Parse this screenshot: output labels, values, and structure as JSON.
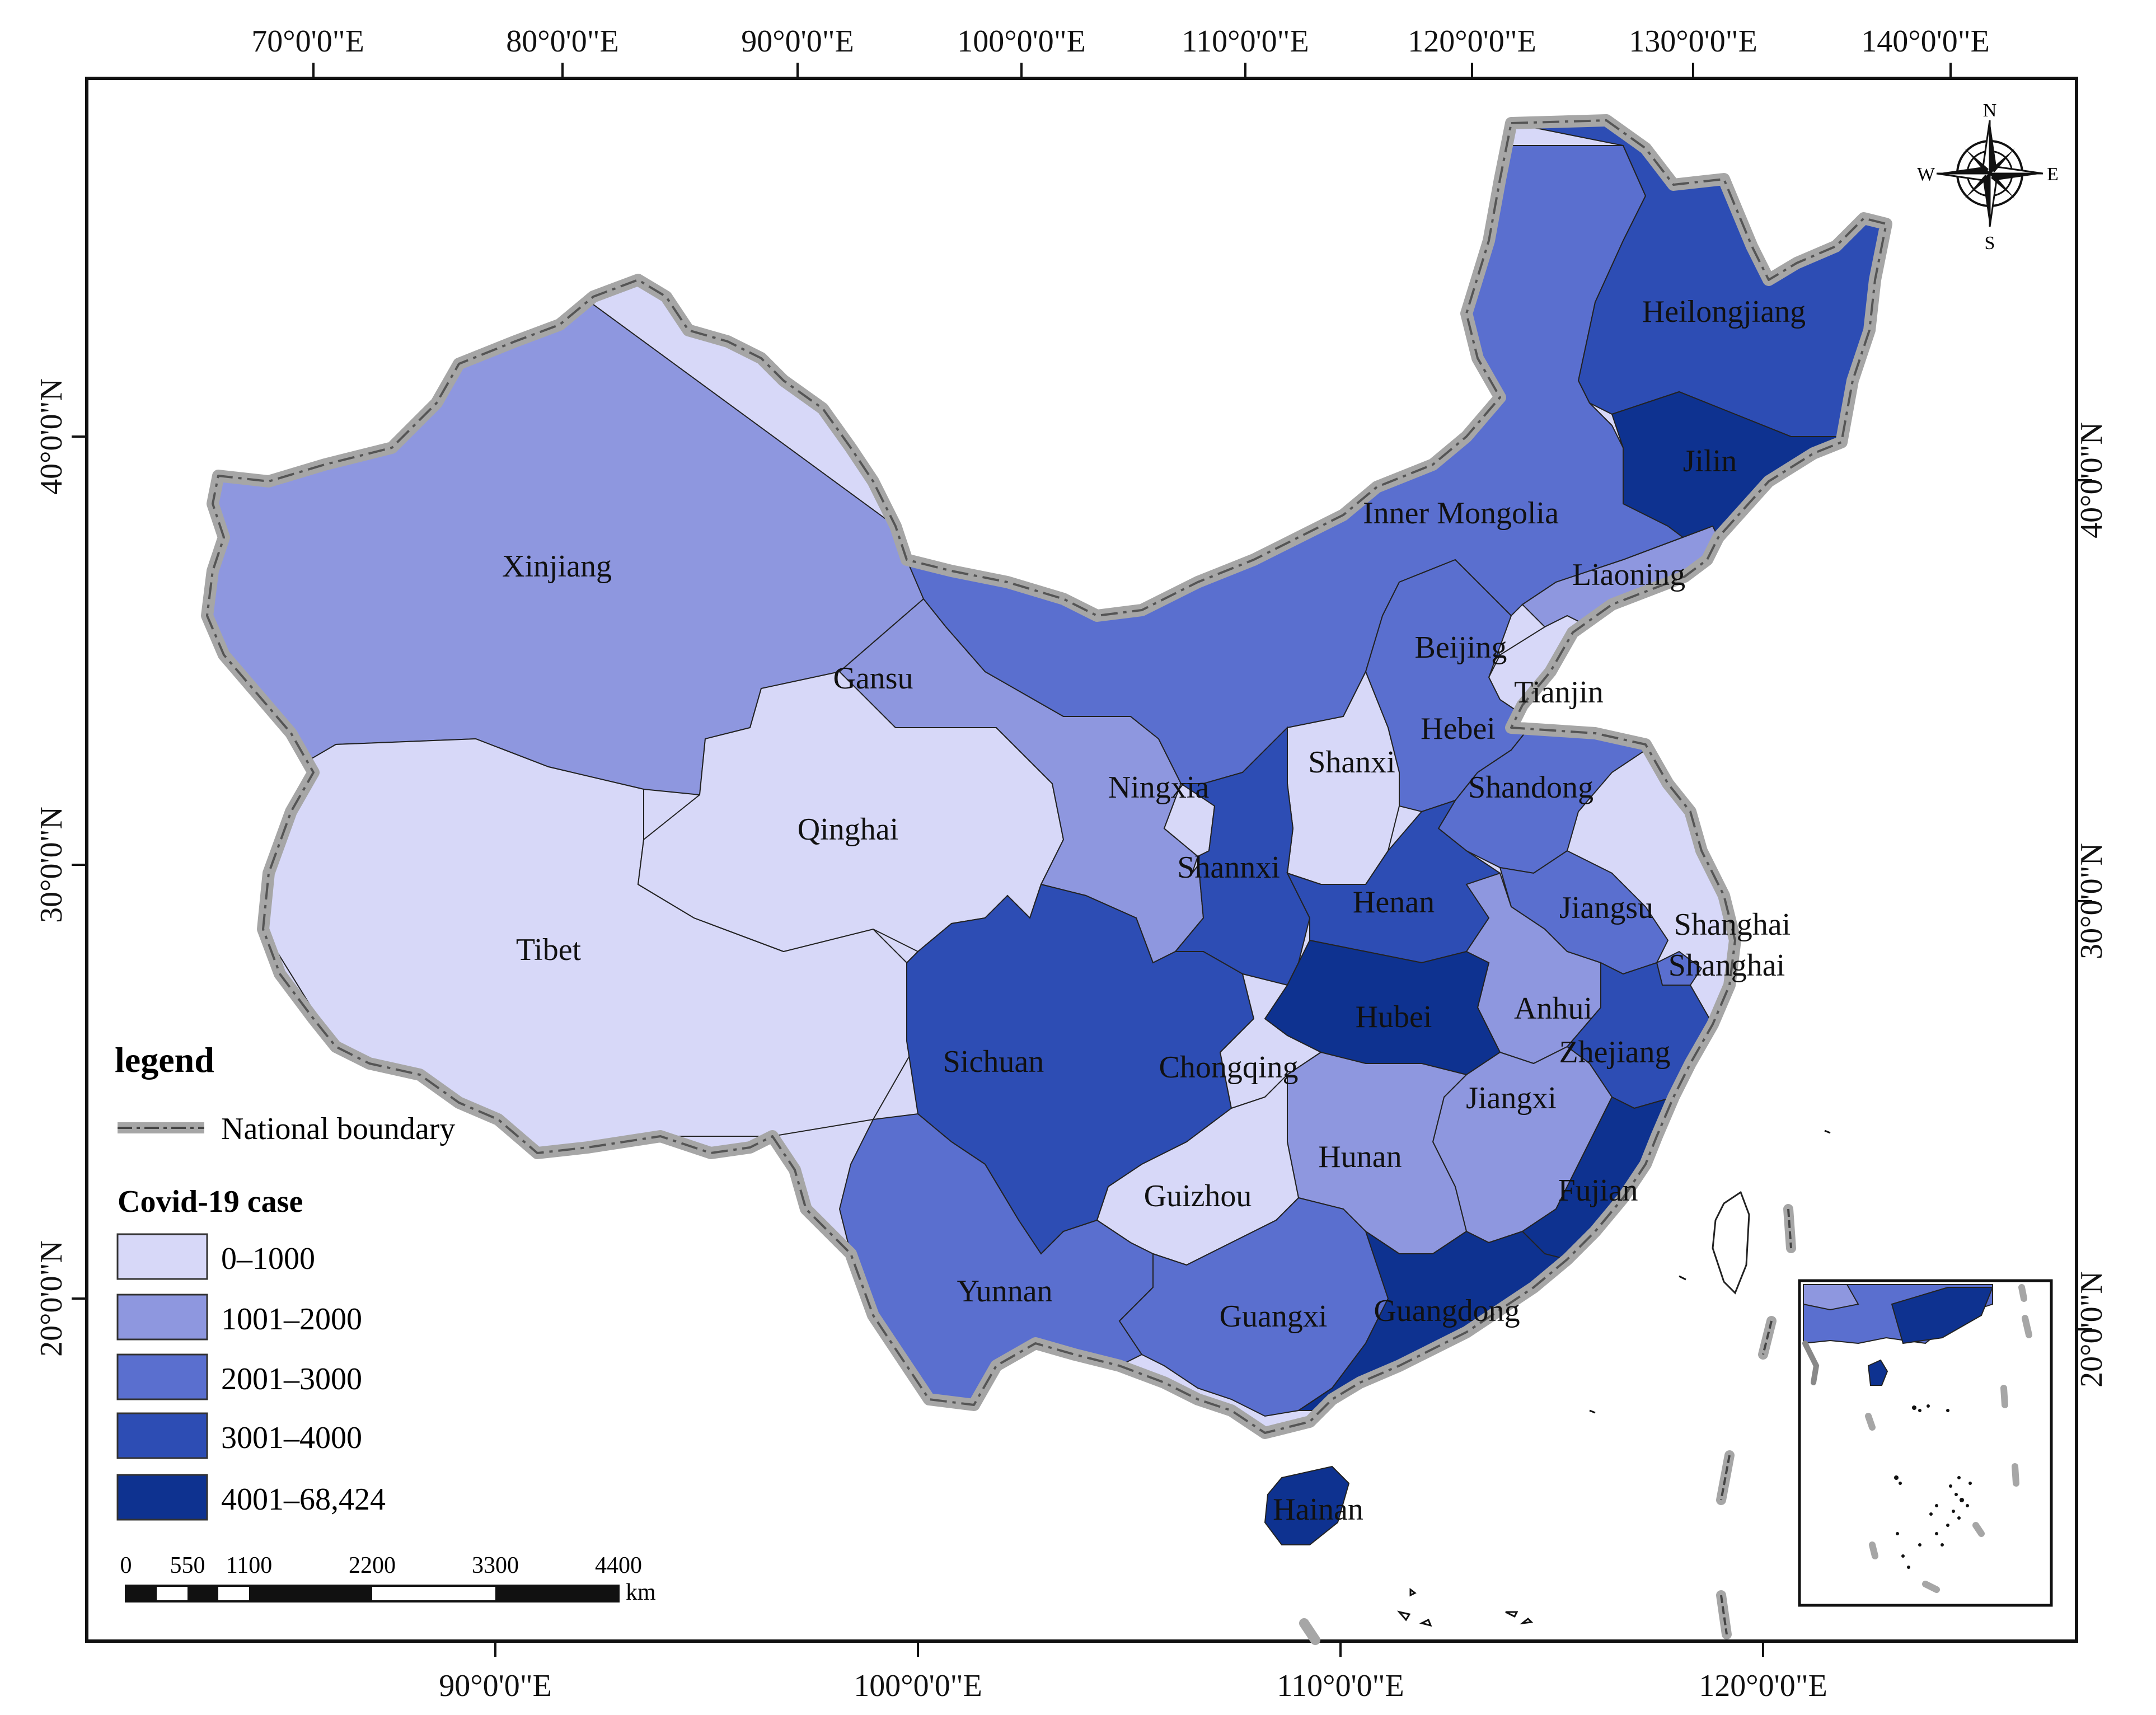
{
  "colors": {
    "class1": "#d7d8f8",
    "class2": "#8e97df",
    "class3": "#5a6fcf",
    "class4": "#2d4db4",
    "class5": "#0e3290",
    "boundary_outer": "#a6a6a6",
    "boundary_inner": "#5c5c5c",
    "frame": "#111111"
  },
  "top_ticks": [
    "70°0'0\"E",
    "80°0'0\"E",
    "90°0'0\"E",
    "100°0'0\"E",
    "110°0'0\"E",
    "120°0'0\"E",
    "130°0'0\"E",
    "140°0'0\"E"
  ],
  "bottom_ticks": [
    "90°0'0\"E",
    "100°0'0\"E",
    "110°0'0\"E",
    "120°0'0\"E"
  ],
  "left_ticks": [
    "40°0'0\"N",
    "30°0'0\"N",
    "20°0'0\"N"
  ],
  "right_ticks": [
    "40°0'0\"N",
    "30°0'0\"N",
    "20°0'0\"N"
  ],
  "provinces": [
    {
      "name": "Heilongjiang",
      "class": 4
    },
    {
      "name": "Jilin",
      "class": 5
    },
    {
      "name": "Inner Mongolia",
      "class": 3
    },
    {
      "name": "Liaoning",
      "class": 2
    },
    {
      "name": "Xinjiang",
      "class": 2
    },
    {
      "name": "Gansu",
      "class": 2
    },
    {
      "name": "Beijing",
      "class": 4
    },
    {
      "name": "Tianjin",
      "class": 1
    },
    {
      "name": "Hebei",
      "class": 3
    },
    {
      "name": "Shanxi",
      "class": 1
    },
    {
      "name": "Ningxia",
      "class": 1
    },
    {
      "name": "Shandong",
      "class": 3
    },
    {
      "name": "Qinghai",
      "class": 1
    },
    {
      "name": "Shannxi",
      "class": 4
    },
    {
      "name": "Henan",
      "class": 4
    },
    {
      "name": "Jiangsu",
      "class": 3
    },
    {
      "name": "Shanghai",
      "class": 3
    },
    {
      "name": "Shanghai",
      "class": 3
    },
    {
      "name": "Tibet",
      "class": 1
    },
    {
      "name": "Hubei",
      "class": 5
    },
    {
      "name": "Anhui",
      "class": 2
    },
    {
      "name": "Sichuan",
      "class": 4
    },
    {
      "name": "Chongqing",
      "class": 1
    },
    {
      "name": "Zhejiang",
      "class": 4
    },
    {
      "name": "Jiangxi",
      "class": 2
    },
    {
      "name": "Hunan",
      "class": 2
    },
    {
      "name": "Fujian",
      "class": 5
    },
    {
      "name": "Guizhou",
      "class": 1
    },
    {
      "name": "Yunnan",
      "class": 3
    },
    {
      "name": "Guangxi",
      "class": 3
    },
    {
      "name": "Guangdong",
      "class": 5
    },
    {
      "name": "Hainan",
      "class": 5
    }
  ],
  "legend": {
    "title": "legend",
    "boundary_label": "National boundary",
    "case_title": "Covid-19 case",
    "classes": [
      "0–1000",
      "1001–2000",
      "2001–3000",
      "3001–4000",
      "4001–68,424"
    ]
  },
  "scale": {
    "labels": [
      "0",
      "550",
      "1100",
      "2200",
      "3300",
      "4400"
    ],
    "unit": "km"
  },
  "compass": {
    "n": "N",
    "s": "S",
    "e": "E",
    "w": "W"
  }
}
